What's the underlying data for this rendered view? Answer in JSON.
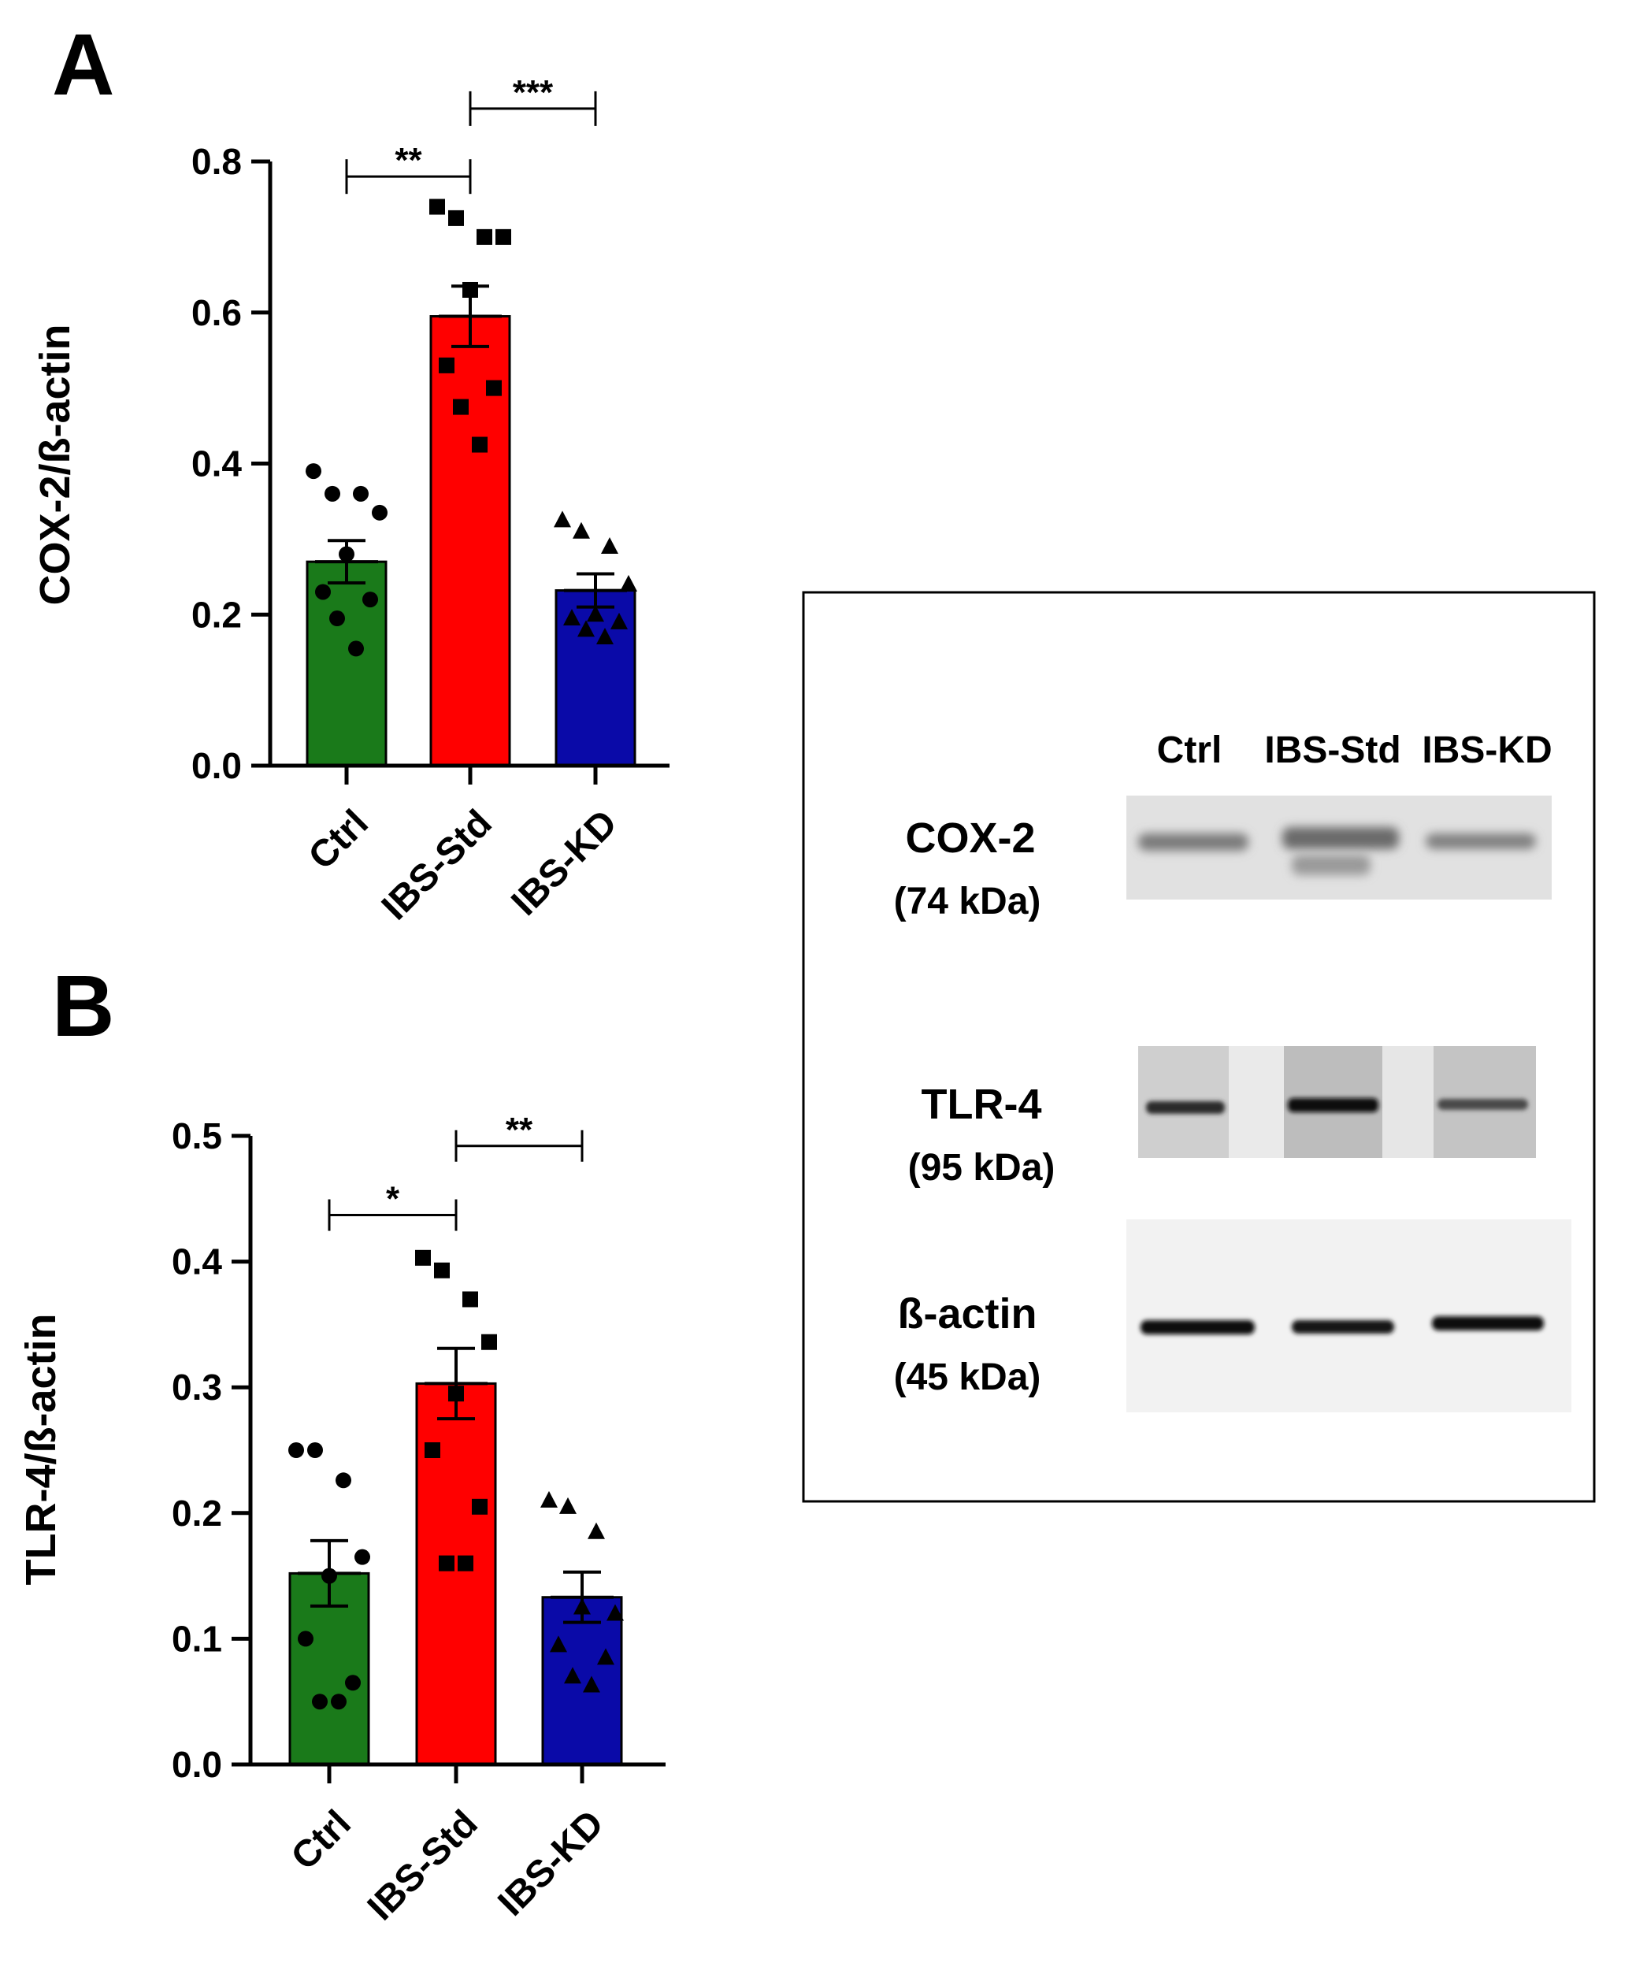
{
  "panel_labels": {
    "a": "A",
    "b": "B"
  },
  "colors": {
    "ctrl": "#1a7a1a",
    "ibs_std": "#ff0000",
    "ibs_kd": "#0a0aa8",
    "axis": "#000000"
  },
  "chart_data": [
    {
      "type": "bar",
      "panel": "A",
      "ylabel": "COX-2/ß-actin",
      "ylim": [
        0,
        0.8
      ],
      "yticks": [
        0.0,
        0.2,
        0.4,
        0.6,
        0.8
      ],
      "ytick_labels": [
        "0.0",
        "0.2",
        "0.4",
        "0.6",
        "0.8"
      ],
      "categories": [
        "Ctrl",
        "IBS-Std",
        "IBS-KD"
      ],
      "means": [
        0.27,
        0.595,
        0.232
      ],
      "sem": [
        0.028,
        0.04,
        0.022
      ],
      "points": [
        [
          0.39,
          0.36,
          0.36,
          0.335,
          0.28,
          0.23,
          0.22,
          0.195,
          0.155
        ],
        [
          0.74,
          0.725,
          0.7,
          0.7,
          0.63,
          0.53,
          0.5,
          0.475,
          0.425
        ],
        [
          0.325,
          0.31,
          0.29,
          0.24,
          0.2,
          0.195,
          0.19,
          0.18,
          0.17
        ]
      ],
      "markers": [
        "circle",
        "square",
        "triangle"
      ],
      "comparisons": [
        {
          "from": 0,
          "to": 1,
          "y": 0.78,
          "label": "**"
        },
        {
          "from": 1,
          "to": 2,
          "y": 0.87,
          "label": "***"
        }
      ]
    },
    {
      "type": "bar",
      "panel": "B",
      "ylabel": "TLR-4/ß-actin",
      "ylim": [
        0,
        0.5
      ],
      "yticks": [
        0.0,
        0.1,
        0.2,
        0.3,
        0.4,
        0.5
      ],
      "ytick_labels": [
        "0.0",
        "0.1",
        "0.2",
        "0.3",
        "0.4",
        "0.5"
      ],
      "categories": [
        "Ctrl",
        "IBS-Std",
        "IBS-KD"
      ],
      "means": [
        0.152,
        0.303,
        0.133
      ],
      "sem": [
        0.026,
        0.028,
        0.02
      ],
      "points": [
        [
          0.25,
          0.25,
          0.226,
          0.165,
          0.15,
          0.1,
          0.065,
          0.05,
          0.05
        ],
        [
          0.403,
          0.393,
          0.37,
          0.336,
          0.295,
          0.25,
          0.205,
          0.16,
          0.16
        ],
        [
          0.21,
          0.205,
          0.185,
          0.12,
          0.125,
          0.095,
          0.085,
          0.07,
          0.063
        ]
      ],
      "markers": [
        "circle",
        "square",
        "triangle"
      ],
      "comparisons": [
        {
          "from": 0,
          "to": 1,
          "y": 0.437,
          "label": "*"
        },
        {
          "from": 1,
          "to": 2,
          "y": 0.492,
          "label": "**"
        }
      ]
    }
  ],
  "blot": {
    "lane_labels": [
      "Ctrl",
      "IBS-Std",
      "IBS-KD"
    ],
    "bands": [
      {
        "name": "COX-2",
        "size": "(74 kDa)",
        "intensity": [
          0.35,
          0.55,
          0.3
        ]
      },
      {
        "name": "TLR-4",
        "size": "(95 kDa)",
        "intensity": [
          0.7,
          1.0,
          0.55
        ]
      },
      {
        "name": "ß-actin",
        "size": "(45 kDa)",
        "intensity": [
          0.95,
          0.9,
          0.95
        ]
      }
    ]
  }
}
